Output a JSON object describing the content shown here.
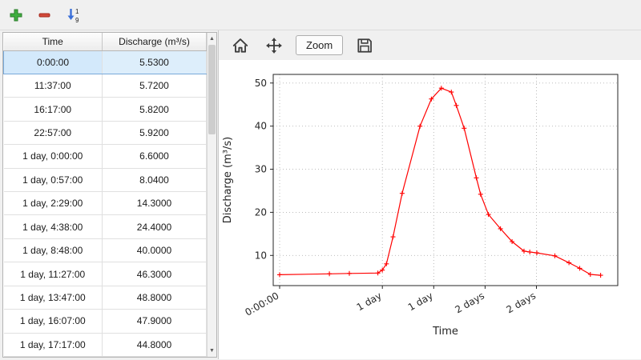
{
  "icons": {
    "add": "plus-icon",
    "remove": "minus-icon",
    "sort": "sort-numeric-icon",
    "sort_top": "1",
    "sort_bottom": "9",
    "up_arrow": "▲",
    "down_arrow": "▼",
    "home": "home-icon",
    "pan": "pan-icon",
    "save": "save-icon"
  },
  "colors": {
    "add_green": "#3fae3f",
    "add_green_dark": "#2c7d2c",
    "remove_red": "#d24a3a",
    "remove_red_dark": "#a52a1e",
    "sort_blue": "#3a6fd8",
    "selection_bg": "#ddeefb",
    "selection_border": "#79a9d9",
    "line_red": "#ff0000"
  },
  "table": {
    "headers": [
      "Time",
      "Discharge (m³/s)"
    ],
    "selected_row": 0,
    "rows": [
      [
        "0:00:00",
        "5.5300"
      ],
      [
        "11:37:00",
        "5.7200"
      ],
      [
        "16:17:00",
        "5.8200"
      ],
      [
        "22:57:00",
        "5.9200"
      ],
      [
        "1 day, 0:00:00",
        "6.6000"
      ],
      [
        "1 day, 0:57:00",
        "8.0400"
      ],
      [
        "1 day, 2:29:00",
        "14.3000"
      ],
      [
        "1 day, 4:38:00",
        "24.4000"
      ],
      [
        "1 day, 8:48:00",
        "40.0000"
      ],
      [
        "1 day, 11:27:00",
        "46.3000"
      ],
      [
        "1 day, 13:47:00",
        "48.8000"
      ],
      [
        "1 day, 16:07:00",
        "47.9000"
      ],
      [
        "1 day, 17:17:00",
        "44.8000"
      ]
    ]
  },
  "plot_toolbar": {
    "zoom_label": "Zoom"
  },
  "chart_data": {
    "type": "line",
    "title": "",
    "xlabel": "Time",
    "ylabel": "Discharge (m³/s)",
    "line_color": "#ff0000",
    "marker": "+",
    "grid": true,
    "grid_style": "dotted",
    "xlim_hours": [
      -1.5,
      79
    ],
    "ylim": [
      3,
      52
    ],
    "x_ticks": [
      {
        "hours": 0,
        "label": "0:00:00"
      },
      {
        "hours": 24,
        "label": "1 day"
      },
      {
        "hours": 36,
        "label": "1 day"
      },
      {
        "hours": 48,
        "label": "2 days"
      },
      {
        "hours": 60,
        "label": "2 days"
      }
    ],
    "y_ticks": [
      10,
      20,
      30,
      40,
      50
    ],
    "series": [
      {
        "name": "Discharge",
        "x_hours": [
          0,
          11.62,
          16.28,
          22.95,
          24,
          24.95,
          26.48,
          28.63,
          32.8,
          35.45,
          37.78,
          40.12,
          41.28,
          43.12,
          45.95,
          46.95,
          48.78,
          51.6,
          54.3,
          57.1,
          58.45,
          60.1,
          64.3,
          67.6,
          70.1,
          72.6,
          75.0
        ],
        "values": [
          5.53,
          5.72,
          5.82,
          5.92,
          6.6,
          8.04,
          14.3,
          24.4,
          40.0,
          46.3,
          48.8,
          47.9,
          44.8,
          39.5,
          28.0,
          24.2,
          19.5,
          16.2,
          13.2,
          11.0,
          10.8,
          10.6,
          9.9,
          8.3,
          7.0,
          5.6,
          5.4
        ]
      }
    ]
  }
}
